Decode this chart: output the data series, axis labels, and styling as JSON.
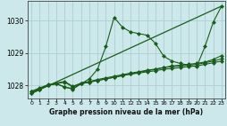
{
  "title": "Graphe pression niveau de la mer (hPa)",
  "bg_color": "#cce8ea",
  "grid_color": "#aed0d3",
  "line_color": "#1a5c1a",
  "marker_color": "#1a5c1a",
  "xlim": [
    -0.5,
    23.5
  ],
  "ylim": [
    1027.6,
    1030.6
  ],
  "yticks": [
    1028,
    1029,
    1030
  ],
  "xticks": [
    0,
    1,
    2,
    3,
    4,
    5,
    6,
    7,
    8,
    9,
    10,
    11,
    12,
    13,
    14,
    15,
    16,
    17,
    18,
    19,
    20,
    21,
    22,
    23
  ],
  "series": [
    {
      "x": [
        0,
        1,
        2,
        3,
        4,
        5,
        6,
        7,
        8,
        9,
        10,
        11,
        12,
        13,
        14,
        15,
        16,
        17,
        18,
        19,
        20,
        21,
        22,
        23
      ],
      "y": [
        1027.8,
        1027.9,
        1028.0,
        1028.05,
        1028.1,
        1027.95,
        1028.05,
        1028.1,
        1028.15,
        1028.2,
        1028.25,
        1028.3,
        1028.35,
        1028.38,
        1028.42,
        1028.45,
        1028.5,
        1028.52,
        1028.55,
        1028.58,
        1028.6,
        1028.65,
        1028.7,
        1028.75
      ],
      "linestyle": "-",
      "marker": "D",
      "markersize": 2.0,
      "linewidth": 0.8
    },
    {
      "x": [
        0,
        1,
        2,
        3,
        4,
        5,
        6,
        7,
        8,
        9,
        10,
        11,
        12,
        13,
        14,
        15,
        16,
        17,
        18,
        19,
        20,
        21,
        22,
        23
      ],
      "y": [
        1027.82,
        1027.92,
        1028.02,
        1028.07,
        1028.12,
        1027.97,
        1028.07,
        1028.12,
        1028.18,
        1028.23,
        1028.28,
        1028.33,
        1028.38,
        1028.42,
        1028.47,
        1028.5,
        1028.55,
        1028.58,
        1028.6,
        1028.63,
        1028.65,
        1028.7,
        1028.75,
        1028.82
      ],
      "linestyle": "-",
      "marker": "D",
      "markersize": 2.0,
      "linewidth": 0.8
    },
    {
      "x": [
        0,
        1,
        2,
        3,
        4,
        5,
        6,
        7,
        8,
        9,
        10,
        11,
        12,
        13,
        14,
        15,
        16,
        17,
        18,
        19,
        20,
        21,
        22,
        23
      ],
      "y": [
        1027.75,
        1027.88,
        1028.0,
        1028.05,
        1027.95,
        1027.9,
        1028.05,
        1028.1,
        1028.15,
        1028.2,
        1028.25,
        1028.3,
        1028.35,
        1028.4,
        1028.45,
        1028.5,
        1028.55,
        1028.6,
        1028.62,
        1028.65,
        1028.68,
        1028.72,
        1028.8,
        1028.92
      ],
      "linestyle": "-",
      "marker": "D",
      "markersize": 2.0,
      "linewidth": 0.8
    },
    {
      "x": [
        0,
        1,
        2,
        3,
        4,
        5,
        6,
        7,
        8,
        9,
        10,
        11,
        12,
        13,
        14,
        15,
        16,
        17,
        18,
        19,
        20,
        21,
        22,
        23
      ],
      "y": [
        1027.75,
        1027.88,
        1028.0,
        1028.05,
        1027.95,
        1027.88,
        1028.05,
        1028.2,
        1028.5,
        1029.2,
        1030.1,
        1029.8,
        1029.65,
        1029.6,
        1029.55,
        1029.3,
        1028.9,
        1028.75,
        1028.68,
        1028.62,
        1028.58,
        1029.2,
        1029.95,
        1030.45
      ],
      "linestyle": "-",
      "marker": "D",
      "markersize": 2.0,
      "linewidth": 0.8
    },
    {
      "x": [
        0,
        23
      ],
      "y": [
        1027.75,
        1030.45
      ],
      "linestyle": "-",
      "marker": "None",
      "markersize": 0,
      "linewidth": 0.9
    }
  ]
}
